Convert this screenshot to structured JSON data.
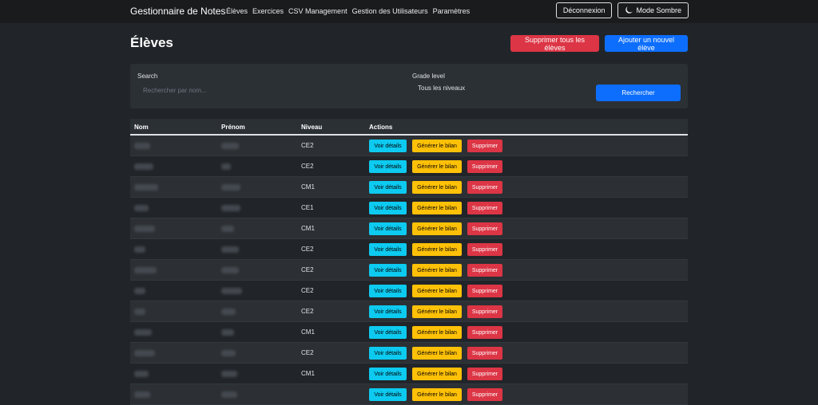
{
  "navbar": {
    "brand": "Gestionnaire de Notes",
    "links": [
      "Élèves",
      "Exercices",
      "CSV Management",
      "Gestion des Utilisateurs",
      "Paramètres"
    ],
    "logout_label": "Déconnexion",
    "dark_mode_label": "Mode Sombre"
  },
  "page": {
    "title": "Élèves",
    "delete_all_label": "Supprimer tous les élèves",
    "add_student_label": "Ajouter un nouvel élève"
  },
  "filters": {
    "search_label": "Search",
    "search_placeholder": "Rechercher par nom...",
    "grade_label": "Grade level",
    "grade_selected": "Tous les niveaux",
    "search_button": "Rechercher"
  },
  "table": {
    "headers": [
      "Nom",
      "Prénom",
      "Niveau",
      "Actions"
    ],
    "action_labels": {
      "view": "Voir détails",
      "report": "Générer le bilan",
      "delete": "Supprimer"
    },
    "rows": [
      {
        "niveau": "CE2"
      },
      {
        "niveau": "CE2"
      },
      {
        "niveau": "CM1"
      },
      {
        "niveau": "CE1"
      },
      {
        "niveau": "CM1"
      },
      {
        "niveau": "CE2"
      },
      {
        "niveau": "CE2"
      },
      {
        "niveau": "CE2"
      },
      {
        "niveau": "CE2"
      },
      {
        "niveau": "CM1"
      },
      {
        "niveau": "CE2"
      },
      {
        "niveau": "CM1"
      },
      {
        "niveau": ""
      }
    ]
  },
  "colors": {
    "background": "#212529",
    "navbar": "#191b1d",
    "primary": "#0d6efd",
    "danger": "#dc3545",
    "info": "#0dcaf0",
    "warning": "#ffc107"
  }
}
